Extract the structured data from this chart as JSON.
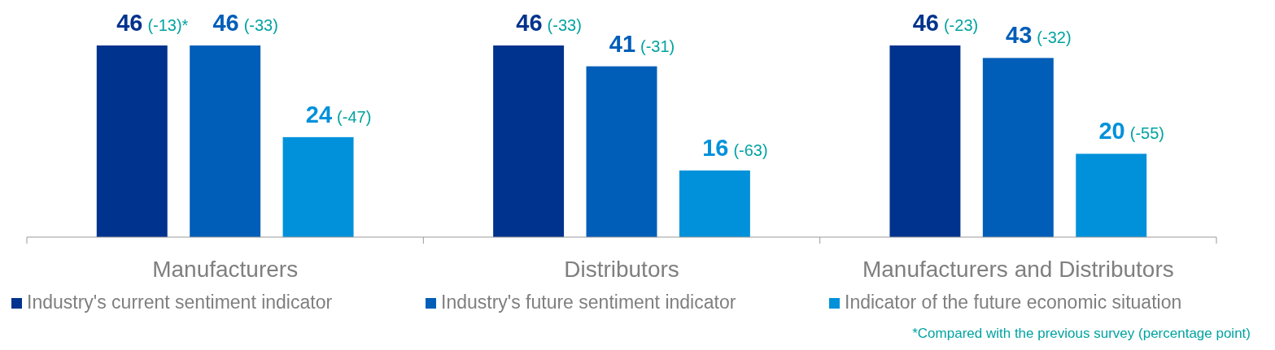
{
  "chart_data": {
    "type": "bar",
    "categories": [
      "Manufacturers",
      "Distributors",
      "Manufacturers and Distributors"
    ],
    "series": [
      {
        "name": "Industry's current sentiment indicator",
        "color": "#00338d",
        "values": [
          46,
          46,
          46
        ],
        "value_labels": [
          "46 (-13)*",
          "46 (-33)",
          "46 (-23)"
        ]
      },
      {
        "name": "Industry's future sentiment indicator",
        "color": "#005eb8",
        "values": [
          46,
          41,
          43
        ],
        "value_labels": [
          "46 (-33)",
          "41 (-31)",
          "43 (-32)"
        ]
      },
      {
        "name": "Indicator of the future economic situation",
        "color": "#0091da",
        "values": [
          24,
          16,
          20
        ],
        "value_labels": [
          "24 (-47)",
          "16 (-63)",
          "20 (-55)"
        ]
      }
    ],
    "legend": "bottom",
    "annotations": [
      "*Compared with the previous survey (percentage point)"
    ]
  }
}
